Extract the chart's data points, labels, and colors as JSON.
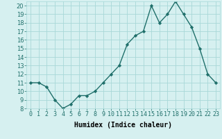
{
  "x": [
    0,
    1,
    2,
    3,
    4,
    5,
    6,
    7,
    8,
    9,
    10,
    11,
    12,
    13,
    14,
    15,
    16,
    17,
    18,
    19,
    20,
    21,
    22,
    23
  ],
  "y": [
    11,
    11,
    10.5,
    9,
    8,
    8.5,
    9.5,
    9.5,
    10,
    11,
    12,
    13,
    15.5,
    16.5,
    17,
    20,
    18,
    19,
    20.5,
    19,
    17.5,
    15,
    12,
    11
  ],
  "line_color": "#1f6f6a",
  "marker": "D",
  "marker_size": 2.2,
  "bg_color": "#d6f0f0",
  "grid_color": "#a8d8d8",
  "xlabel": "Humidex (Indice chaleur)",
  "xlim": [
    -0.5,
    23.5
  ],
  "ylim": [
    8,
    20.5
  ],
  "yticks": [
    8,
    9,
    10,
    11,
    12,
    13,
    14,
    15,
    16,
    17,
    18,
    19,
    20
  ],
  "xticks": [
    0,
    1,
    2,
    3,
    4,
    5,
    6,
    7,
    8,
    9,
    10,
    11,
    12,
    13,
    14,
    15,
    16,
    17,
    18,
    19,
    20,
    21,
    22,
    23
  ],
  "xlabel_fontsize": 7,
  "tick_fontsize": 6,
  "line_width": 1.0
}
